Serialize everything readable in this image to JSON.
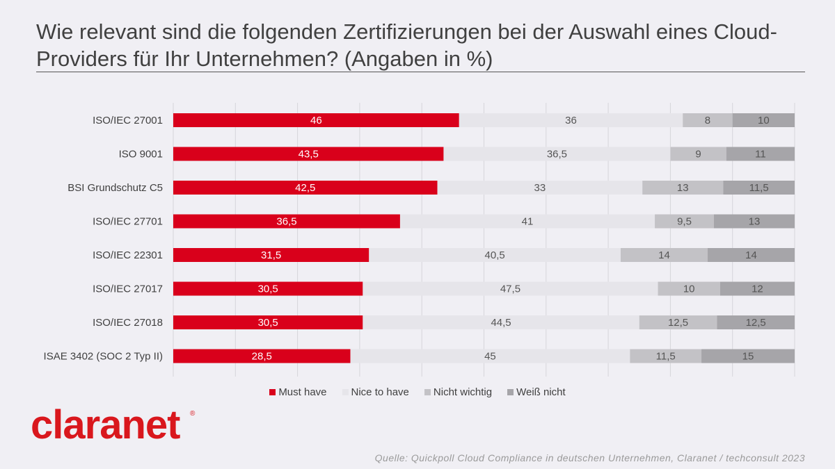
{
  "title": "Wie relevant sind die folgenden Zertifizierungen bei der Auswahl eines Cloud-Providers für Ihr Unternehmen? (Angaben in %)",
  "source": "Quelle: Quickpoll Cloud Compliance in deutschen Unternehmen, Claranet / techconsult 2023",
  "logo": {
    "text": "claranet",
    "mark": "®"
  },
  "colors": {
    "must_have": "#d9001b",
    "nice_to_have": "#e6e5ea",
    "nicht_wichtig": "#c3c2c6",
    "weiss_nicht": "#a6a5a9"
  },
  "chart_data": {
    "type": "bar",
    "orientation": "horizontal",
    "stacked": true,
    "categories": [
      "ISO/IEC 27001",
      "ISO 9001",
      "BSI Grundschutz C5",
      "ISO/IEC 27701",
      "ISO/IEC 22301",
      "ISO/IEC 27017",
      "ISO/IEC 27018",
      "ISAE 3402 (SOC 2 Typ II)"
    ],
    "series": [
      {
        "name": "Must have",
        "values": [
          46,
          43.5,
          42.5,
          36.5,
          31.5,
          30.5,
          30.5,
          28.5
        ],
        "labels": [
          "46",
          "43,5",
          "42,5",
          "36,5",
          "31,5",
          "30,5",
          "30,5",
          "28,5"
        ]
      },
      {
        "name": "Nice to have",
        "values": [
          36,
          36.5,
          33,
          41,
          40.5,
          47.5,
          44.5,
          45
        ],
        "labels": [
          "36",
          "36,5",
          "33",
          "41",
          "40,5",
          "47,5",
          "44,5",
          "45"
        ]
      },
      {
        "name": "Nicht wichtig",
        "values": [
          8,
          9,
          13,
          9.5,
          14,
          10,
          12.5,
          11.5
        ],
        "labels": [
          "8",
          "9",
          "13",
          "9,5",
          "14",
          "10",
          "12,5",
          "11,5"
        ]
      },
      {
        "name": "Weiß nicht",
        "values": [
          10,
          11,
          11.5,
          13,
          14,
          12,
          12.5,
          15
        ],
        "labels": [
          "10",
          "11",
          "11,5",
          "13",
          "14",
          "12",
          "12,5",
          "15"
        ]
      }
    ],
    "xlim": [
      0,
      100
    ],
    "grid": true,
    "legend_position": "bottom"
  }
}
